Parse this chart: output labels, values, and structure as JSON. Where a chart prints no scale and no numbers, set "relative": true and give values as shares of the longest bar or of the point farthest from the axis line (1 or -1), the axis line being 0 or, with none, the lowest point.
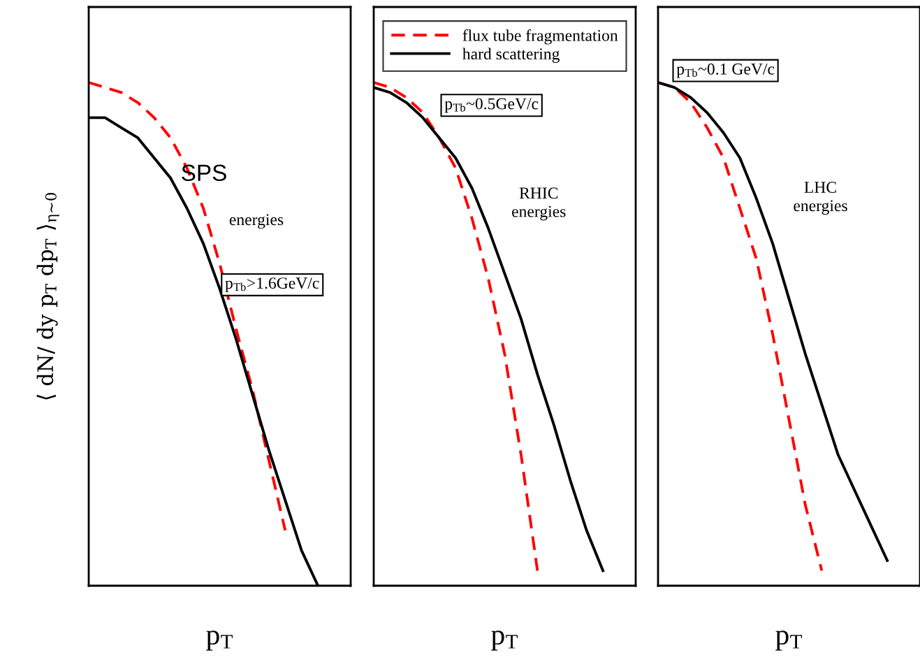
{
  "chart_data": [
    {
      "type": "line",
      "relative": true,
      "ylabel": "⟨ dN/ dy p$_{T}$ dp$_{T}$ ⟩$_{η∼0}$",
      "xlabel": "p$_{T}$",
      "grid": false,
      "legend": false,
      "categories": [
        null,
        null,
        null,
        null,
        null,
        null,
        null,
        null,
        null,
        null,
        null,
        null,
        null,
        null,
        null,
        null,
        null
      ],
      "annotations": [
        "SPS",
        "energies",
        "p$_{Tb}$>1.6GeV/c"
      ],
      "series": [
        {
          "color": "#ff0000",
          "line_style": "dashed",
          "values": [
            1.0,
            0.99,
            0.98,
            0.96,
            0.93,
            0.89,
            0.83,
            0.75,
            0.64,
            0.51,
            0.39,
            0.25,
            0.11,
            null,
            null,
            null,
            null
          ]
        },
        {
          "color": "#000000",
          "line_style": "solid",
          "values": [
            0.93,
            0.93,
            0.91,
            0.89,
            0.85,
            0.81,
            0.75,
            0.68,
            0.59,
            0.49,
            0.38,
            0.27,
            0.17,
            0.07,
            0.0,
            null,
            null
          ]
        }
      ]
    },
    {
      "type": "line",
      "relative": true,
      "xlabel": "p$_{T}$",
      "grid": false,
      "legend": "top",
      "categories": [
        null,
        null,
        null,
        null,
        null,
        null,
        null,
        null,
        null,
        null,
        null,
        null,
        null,
        null,
        null,
        null,
        null
      ],
      "annotations": [
        "RHIC\nenergies",
        "p$_{Tb}$~0.5GeV/c"
      ],
      "series": [
        {
          "name": "flux tube fragmentation",
          "color": "#ff0000",
          "line_style": "dashed",
          "values": [
            1.0,
            0.99,
            0.97,
            0.94,
            0.89,
            0.83,
            0.73,
            0.61,
            0.46,
            0.26,
            0.03,
            null,
            null,
            null,
            null,
            null,
            null
          ]
        },
        {
          "name": "hard scattering",
          "color": "#000000",
          "line_style": "solid",
          "values": [
            0.99,
            0.98,
            0.96,
            0.93,
            0.89,
            0.85,
            0.79,
            0.71,
            0.62,
            0.53,
            0.42,
            0.32,
            0.21,
            0.11,
            0.03,
            null,
            null
          ]
        }
      ]
    },
    {
      "type": "line",
      "relative": true,
      "xlabel": "p$_{T}$",
      "grid": false,
      "legend": false,
      "categories": [
        null,
        null,
        null,
        null,
        null,
        null,
        null,
        null,
        null,
        null,
        null,
        null,
        null,
        null,
        null,
        null,
        null
      ],
      "annotations": [
        "LHC\nenergies",
        "p$_{Tb}$~0.1 GeV/c"
      ],
      "series": [
        {
          "color": "#ff0000",
          "line_style": "dashed",
          "values": [
            1.0,
            0.99,
            0.96,
            0.91,
            0.85,
            0.75,
            0.65,
            0.5,
            0.33,
            0.16,
            0.03,
            null,
            null,
            null,
            null,
            null,
            null
          ]
        },
        {
          "color": "#000000",
          "line_style": "solid",
          "values": [
            1.0,
            0.99,
            0.97,
            0.94,
            0.9,
            0.85,
            0.77,
            0.68,
            0.57,
            0.46,
            0.36,
            0.26,
            0.19,
            0.12,
            0.05,
            null,
            null
          ]
        }
      ]
    }
  ]
}
